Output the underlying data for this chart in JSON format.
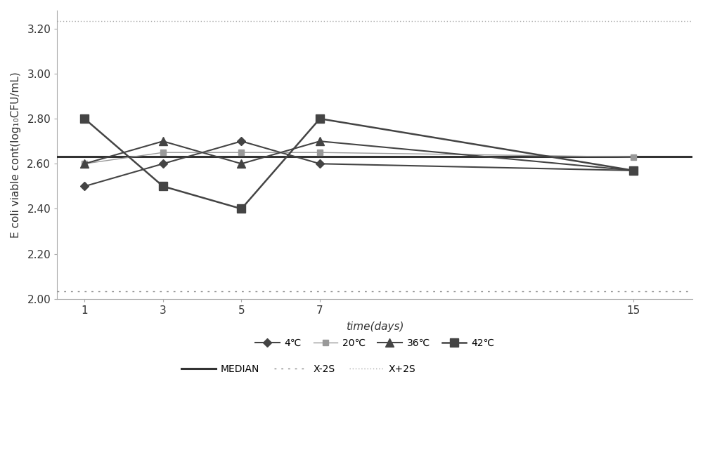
{
  "x": [
    1,
    3,
    5,
    7,
    15
  ],
  "series": {
    "4C": [
      2.5,
      2.6,
      2.7,
      2.6,
      2.57
    ],
    "20C": [
      2.6,
      2.65,
      2.65,
      2.65,
      2.63
    ],
    "36C": [
      2.6,
      2.7,
      2.6,
      2.7,
      2.57
    ],
    "42C": [
      2.8,
      2.5,
      2.4,
      2.8,
      2.57
    ]
  },
  "median": 2.633,
  "x2s": 2.033,
  "xp2s": 3.233,
  "series_colors": {
    "4C": "#444444",
    "20C": "#999999",
    "36C": "#444444",
    "42C": "#444444"
  },
  "markers": {
    "4C": "D",
    "20C": "s",
    "36C": "^",
    "42C": "s"
  },
  "marker_sizes": {
    "4C": 6,
    "20C": 6,
    "36C": 8,
    "42C": 8
  },
  "line_widths": {
    "4C": 1.5,
    "20C": 1.0,
    "36C": 1.5,
    "42C": 1.8
  },
  "labels": {
    "4C": "4℃",
    "20C": "20℃",
    "36C": "36℃",
    "42C": "42℃"
  },
  "median_color": "#333333",
  "median_lw": 2.2,
  "x2s_color": "#888888",
  "x2s_lw": 1.0,
  "xp2s_color": "#aaaaaa",
  "xp2s_lw": 1.0,
  "ylim": [
    2.0,
    3.28
  ],
  "yticks": [
    2.0,
    2.2,
    2.4,
    2.6,
    2.8,
    3.0,
    3.2
  ],
  "xticks": [
    1,
    3,
    5,
    7,
    15
  ],
  "xlabel": "time(days)",
  "ylabel": "E coli viable cont(log₁₀CFU/mL)",
  "axis_fontsize": 11,
  "tick_fontsize": 11,
  "legend_fontsize": 10,
  "background_color": "#ffffff",
  "figure_background": "#ffffff"
}
